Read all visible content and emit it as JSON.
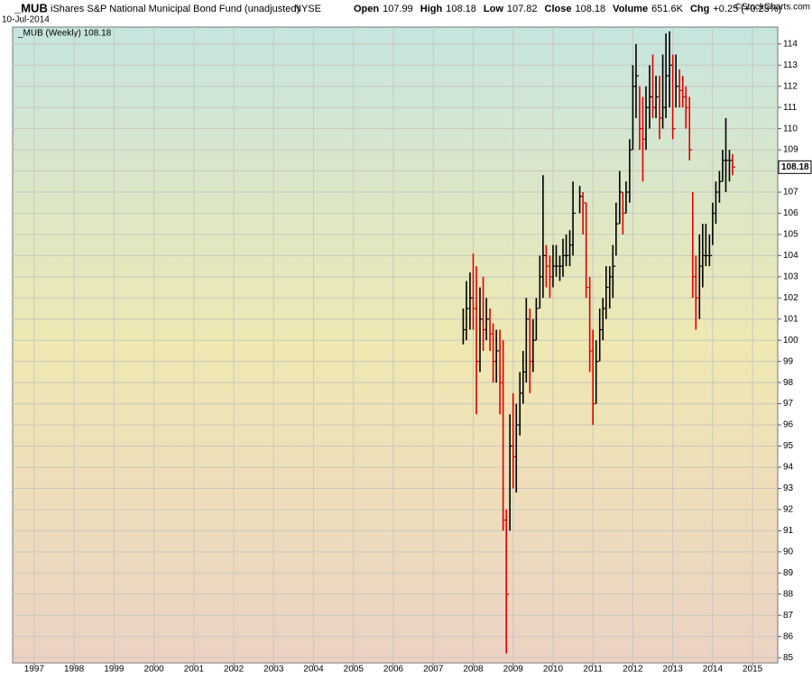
{
  "chart_data": {
    "type": "ohlc",
    "title": "_MUB",
    "subtitle": "iShares S&P National Municipal Bond Fund (unadjusted)",
    "exchange": "NYSE",
    "date": "10-Jul-2014",
    "credit": "©StockCharts.com",
    "quote": [
      {
        "label": "Open",
        "value": "107.99"
      },
      {
        "label": "High",
        "value": "108.18"
      },
      {
        "label": "Low",
        "value": "107.82"
      },
      {
        "label": "Close",
        "value": "108.18"
      },
      {
        "label": "Volume",
        "value": "651.6K"
      },
      {
        "label": "Chg",
        "value": "+0.25 (+0.23%)"
      }
    ],
    "last_value": 108.18,
    "up_color": "#000000",
    "down_color": "#e00000",
    "grid": true,
    "xlim": [
      1996.46,
      2015.63
    ],
    "ylim": [
      84.75,
      114.8
    ],
    "xticks": [
      1997,
      1998,
      1999,
      2000,
      2001,
      2002,
      2003,
      2004,
      2005,
      2006,
      2007,
      2008,
      2009,
      2010,
      2011,
      2012,
      2013,
      2014,
      2015
    ],
    "yticks": [
      85,
      86,
      87,
      88,
      89,
      90,
      91,
      92,
      93,
      94,
      95,
      96,
      97,
      98,
      99,
      100,
      101,
      102,
      103,
      104,
      105,
      106,
      107,
      108,
      109,
      110,
      111,
      112,
      113,
      114
    ],
    "series": [
      {
        "name": "_MUB (Weekly) 108.18",
        "x": [
          2007.75,
          2007.83,
          2007.92,
          2008.0,
          2008.08,
          2008.17,
          2008.25,
          2008.33,
          2008.42,
          2008.5,
          2008.58,
          2008.67,
          2008.75,
          2008.83,
          2008.92,
          2009.0,
          2009.08,
          2009.17,
          2009.25,
          2009.33,
          2009.42,
          2009.5,
          2009.58,
          2009.67,
          2009.75,
          2009.83,
          2009.92,
          2010.0,
          2010.08,
          2010.17,
          2010.25,
          2010.33,
          2010.42,
          2010.5,
          2010.67,
          2010.75,
          2010.83,
          2010.92,
          2011.0,
          2011.08,
          2011.17,
          2011.25,
          2011.33,
          2011.42,
          2011.5,
          2011.58,
          2011.67,
          2011.75,
          2011.83,
          2011.92,
          2012.0,
          2012.08,
          2012.17,
          2012.25,
          2012.33,
          2012.42,
          2012.5,
          2012.58,
          2012.67,
          2012.75,
          2012.83,
          2012.92,
          2013.0,
          2013.08,
          2013.17,
          2013.25,
          2013.33,
          2013.42,
          2013.5,
          2013.58,
          2013.67,
          2013.75,
          2013.83,
          2013.92,
          2014.0,
          2014.08,
          2014.17,
          2014.25,
          2014.33,
          2014.42,
          2014.5
        ],
        "low": [
          99.8,
          100.0,
          100.5,
          100.5,
          96.5,
          98.5,
          99.5,
          100.0,
          99.5,
          98.0,
          98.0,
          96.5,
          91.0,
          85.2,
          91.0,
          93.0,
          92.8,
          95.5,
          97.0,
          98.0,
          97.5,
          98.5,
          100.0,
          101.5,
          102.0,
          102.5,
          102.0,
          102.5,
          103.0,
          102.8,
          103.0,
          103.5,
          103.5,
          104.0,
          106.0,
          105.0,
          102.0,
          98.5,
          96.0,
          97.0,
          99.0,
          100.0,
          101.0,
          101.5,
          102.0,
          104.0,
          105.5,
          105.0,
          106.0,
          106.5,
          109.0,
          110.5,
          109.0,
          107.5,
          109.0,
          110.0,
          110.5,
          110.5,
          109.5,
          110.0,
          110.5,
          111.0,
          109.5,
          111.0,
          111.0,
          111.0,
          110.0,
          108.5,
          102.0,
          100.5,
          101.0,
          102.5,
          103.5,
          103.5,
          104.5,
          105.5,
          106.5,
          107.5,
          107.0,
          107.5,
          107.8
        ],
        "high": [
          101.5,
          102.8,
          103.2,
          104.1,
          103.5,
          102.5,
          103.0,
          102.0,
          101.5,
          100.8,
          100.5,
          100.5,
          100.0,
          92.0,
          96.5,
          97.5,
          97.0,
          98.5,
          99.5,
          102.0,
          101.5,
          101.0,
          102.0,
          104.0,
          107.8,
          104.5,
          104.0,
          104.5,
          104.5,
          104.0,
          104.8,
          105.0,
          105.2,
          107.5,
          107.3,
          107.0,
          106.5,
          103.0,
          100.5,
          100.0,
          101.5,
          102.0,
          103.5,
          103.5,
          104.5,
          106.5,
          108.0,
          107.0,
          107.5,
          109.5,
          113.0,
          114.0,
          112.0,
          111.5,
          112.0,
          113.0,
          113.5,
          112.5,
          112.5,
          113.5,
          114.5,
          114.6,
          113.5,
          113.5,
          112.8,
          112.5,
          112.0,
          111.5,
          107.0,
          104.0,
          105.0,
          105.5,
          105.5,
          105.0,
          106.5,
          107.5,
          108.0,
          109.0,
          110.5,
          109.0,
          108.8
        ],
        "close": [
          100.5,
          101.5,
          102.0,
          101.5,
          99.0,
          101.0,
          100.5,
          101.0,
          100.3,
          99.0,
          99.5,
          98.0,
          91.5,
          88.0,
          95.0,
          94.5,
          96.0,
          97.5,
          98.5,
          101.0,
          99.0,
          100.0,
          101.5,
          103.0,
          104.0,
          103.5,
          103.0,
          103.5,
          103.5,
          103.5,
          104.0,
          104.0,
          104.5,
          106.0,
          106.8,
          106.5,
          102.5,
          99.5,
          97.0,
          99.0,
          100.5,
          101.5,
          102.5,
          103.0,
          103.5,
          105.5,
          107.0,
          106.0,
          107.0,
          109.0,
          112.0,
          112.5,
          110.0,
          109.5,
          111.0,
          111.5,
          111.0,
          111.5,
          110.5,
          111.0,
          112.5,
          113.0,
          110.0,
          112.0,
          111.8,
          111.5,
          111.0,
          109.0,
          103.0,
          102.0,
          103.5,
          104.0,
          104.0,
          104.0,
          106.0,
          107.0,
          107.5,
          108.5,
          108.5,
          108.5,
          108.18
        ]
      }
    ]
  }
}
